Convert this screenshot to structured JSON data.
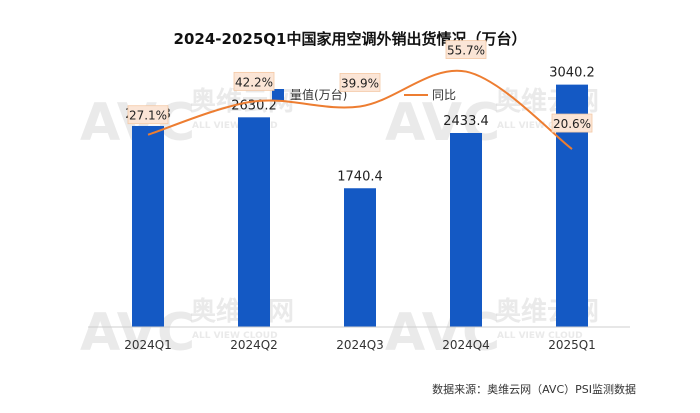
{
  "chart_data": {
    "type": "bar",
    "title": "2024-2025Q1中国家用空调外销出货情况（万台）",
    "categories": [
      "2024Q1",
      "2024Q2",
      "2024Q3",
      "2024Q4",
      "2025Q1"
    ],
    "series": [
      {
        "name": "量值(万台)",
        "type": "bar",
        "axis": "left",
        "color": "#1459c4",
        "values": [
          2521.8,
          2630.2,
          1740.4,
          2433.4,
          3040.2
        ]
      },
      {
        "name": "同比",
        "type": "line",
        "axis": "right",
        "color": "#ed7d31",
        "unit": "%",
        "values": [
          27.1,
          42.2,
          39.9,
          55.7,
          20.6
        ]
      }
    ],
    "ylim_left": [
      0,
      3600
    ],
    "ylim_right": [
      -60,
      70
    ],
    "grid": false,
    "legend_position": "top-center",
    "source": "数据来源：奥维云网（AVC）PSI监测数据",
    "watermark": {
      "brand": "AVC",
      "cn": "奥维云网",
      "en": "ALL VIEW CLOUD"
    }
  }
}
